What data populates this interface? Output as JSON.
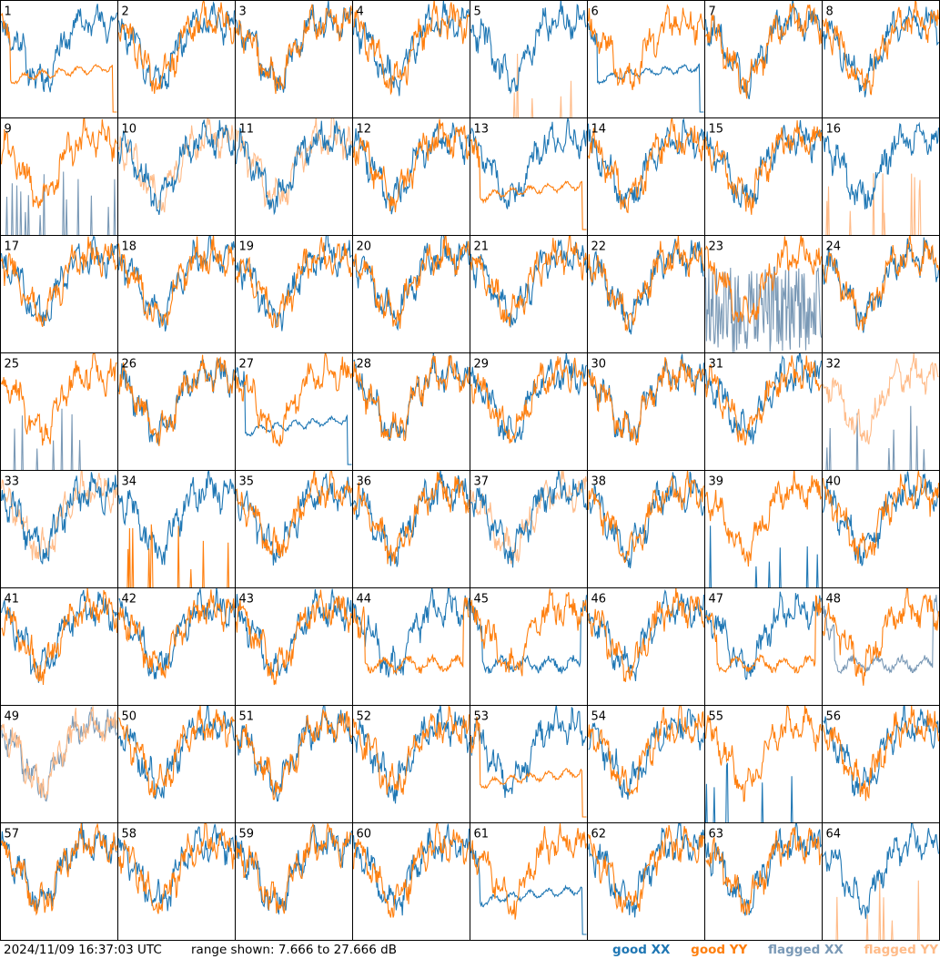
{
  "chart_data": {
    "type": "line",
    "layout": "8x8 small multiples",
    "panels": [
      {
        "label": "1",
        "xx": "good",
        "yy": "good",
        "shape": "yy_collapse"
      },
      {
        "label": "2",
        "xx": "good",
        "yy": "good",
        "shape": "normal"
      },
      {
        "label": "3",
        "xx": "good",
        "yy": "good",
        "shape": "normal"
      },
      {
        "label": "4",
        "xx": "good",
        "yy": "good",
        "shape": "normal"
      },
      {
        "label": "5",
        "xx": "good",
        "yy": "flagged",
        "shape": "yy_spikes"
      },
      {
        "label": "6",
        "xx": "good",
        "yy": "good",
        "shape": "xx_collapse"
      },
      {
        "label": "7",
        "xx": "good",
        "yy": "good",
        "shape": "normal"
      },
      {
        "label": "8",
        "xx": "good",
        "yy": "good",
        "shape": "normal"
      },
      {
        "label": "9",
        "xx": "flagged",
        "yy": "good",
        "shape": "xx_spikes"
      },
      {
        "label": "10",
        "xx": "good",
        "yy": "flagged",
        "shape": "normal"
      },
      {
        "label": "11",
        "xx": "good",
        "yy": "flagged",
        "shape": "normal"
      },
      {
        "label": "12",
        "xx": "good",
        "yy": "good",
        "shape": "normal"
      },
      {
        "label": "13",
        "xx": "good",
        "yy": "good",
        "shape": "yy_collapse"
      },
      {
        "label": "14",
        "xx": "good",
        "yy": "good",
        "shape": "normal"
      },
      {
        "label": "15",
        "xx": "good",
        "yy": "good",
        "shape": "normal"
      },
      {
        "label": "16",
        "xx": "good",
        "yy": "flagged",
        "shape": "yy_spikes"
      },
      {
        "label": "17",
        "xx": "good",
        "yy": "good",
        "shape": "normal"
      },
      {
        "label": "18",
        "xx": "good",
        "yy": "good",
        "shape": "normal"
      },
      {
        "label": "19",
        "xx": "good",
        "yy": "good",
        "shape": "normal"
      },
      {
        "label": "20",
        "xx": "good",
        "yy": "good",
        "shape": "normal"
      },
      {
        "label": "21",
        "xx": "good",
        "yy": "good",
        "shape": "normal"
      },
      {
        "label": "22",
        "xx": "good",
        "yy": "good",
        "shape": "normal"
      },
      {
        "label": "23",
        "xx": "flagged",
        "yy": "good",
        "shape": "xx_noise"
      },
      {
        "label": "24",
        "xx": "good",
        "yy": "good",
        "shape": "normal"
      },
      {
        "label": "25",
        "xx": "flagged",
        "yy": "good",
        "shape": "xx_spikes"
      },
      {
        "label": "26",
        "xx": "good",
        "yy": "good",
        "shape": "normal"
      },
      {
        "label": "27",
        "xx": "good",
        "yy": "good",
        "shape": "xx_collapse"
      },
      {
        "label": "28",
        "xx": "good",
        "yy": "good",
        "shape": "normal"
      },
      {
        "label": "29",
        "xx": "good",
        "yy": "good",
        "shape": "normal"
      },
      {
        "label": "30",
        "xx": "good",
        "yy": "good",
        "shape": "normal"
      },
      {
        "label": "31",
        "xx": "good",
        "yy": "good",
        "shape": "normal"
      },
      {
        "label": "32",
        "xx": "flagged",
        "yy": "flagged",
        "shape": "xx_spikes"
      },
      {
        "label": "33",
        "xx": "good",
        "yy": "flagged",
        "shape": "normal"
      },
      {
        "label": "34",
        "xx": "good",
        "yy": "good",
        "shape": "yy_spikes"
      },
      {
        "label": "35",
        "xx": "good",
        "yy": "good",
        "shape": "normal"
      },
      {
        "label": "36",
        "xx": "good",
        "yy": "good",
        "shape": "normal"
      },
      {
        "label": "37",
        "xx": "good",
        "yy": "flagged",
        "shape": "normal"
      },
      {
        "label": "38",
        "xx": "good",
        "yy": "good",
        "shape": "normal"
      },
      {
        "label": "39",
        "xx": "good",
        "yy": "good",
        "shape": "xx_spikes"
      },
      {
        "label": "40",
        "xx": "good",
        "yy": "good",
        "shape": "normal"
      },
      {
        "label": "41",
        "xx": "good",
        "yy": "good",
        "shape": "normal"
      },
      {
        "label": "42",
        "xx": "good",
        "yy": "good",
        "shape": "normal"
      },
      {
        "label": "43",
        "xx": "good",
        "yy": "good",
        "shape": "normal"
      },
      {
        "label": "44",
        "xx": "good",
        "yy": "good",
        "shape": "yy_low"
      },
      {
        "label": "45",
        "xx": "good",
        "yy": "good",
        "shape": "xx_low"
      },
      {
        "label": "46",
        "xx": "good",
        "yy": "good",
        "shape": "normal"
      },
      {
        "label": "47",
        "xx": "good",
        "yy": "good",
        "shape": "yy_low"
      },
      {
        "label": "48",
        "xx": "flagged",
        "yy": "good",
        "shape": "xx_low"
      },
      {
        "label": "49",
        "xx": "flagged",
        "yy": "flagged",
        "shape": "normal"
      },
      {
        "label": "50",
        "xx": "good",
        "yy": "good",
        "shape": "normal"
      },
      {
        "label": "51",
        "xx": "good",
        "yy": "good",
        "shape": "normal"
      },
      {
        "label": "52",
        "xx": "good",
        "yy": "good",
        "shape": "normal"
      },
      {
        "label": "53",
        "xx": "good",
        "yy": "good",
        "shape": "yy_collapse"
      },
      {
        "label": "54",
        "xx": "good",
        "yy": "good",
        "shape": "normal"
      },
      {
        "label": "55",
        "xx": "good",
        "yy": "good",
        "shape": "xx_spikes"
      },
      {
        "label": "56",
        "xx": "good",
        "yy": "good",
        "shape": "normal"
      },
      {
        "label": "57",
        "xx": "good",
        "yy": "good",
        "shape": "normal"
      },
      {
        "label": "58",
        "xx": "good",
        "yy": "good",
        "shape": "normal"
      },
      {
        "label": "59",
        "xx": "good",
        "yy": "good",
        "shape": "normal"
      },
      {
        "label": "60",
        "xx": "good",
        "yy": "good",
        "shape": "normal"
      },
      {
        "label": "61",
        "xx": "good",
        "yy": "good",
        "shape": "xx_collapse"
      },
      {
        "label": "62",
        "xx": "good",
        "yy": "good",
        "shape": "normal"
      },
      {
        "label": "63",
        "xx": "good",
        "yy": "good",
        "shape": "normal"
      },
      {
        "label": "64",
        "xx": "good",
        "yy": "flagged",
        "shape": "yy_spikes"
      }
    ],
    "ylim": [
      7.666,
      27.666
    ],
    "y_units": "dB",
    "legend": [
      {
        "name": "good XX",
        "color": "#1f77b4"
      },
      {
        "name": "good YY",
        "color": "#ff7f0e"
      },
      {
        "name": "flagged XX",
        "color": "#7a99b6"
      },
      {
        "name": "flagged YY",
        "color": "#ffbb88"
      }
    ],
    "legend_placement": "bottom-right"
  },
  "footer": {
    "timestamp": "2024/11/09 16:37:03 UTC",
    "range_text": "range shown: 7.666 to 27.666 dB"
  },
  "colors": {
    "good_xx": "#1f77b4",
    "good_yy": "#ff7f0e",
    "flagged_xx": "#7a99b6",
    "flagged_yy": "#ffbb88",
    "border": "#000000",
    "background": "#ffffff"
  }
}
